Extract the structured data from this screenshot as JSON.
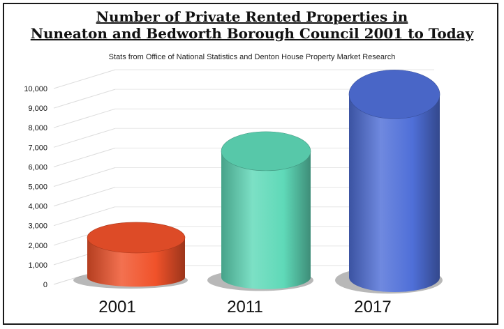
{
  "chart_data": {
    "type": "bar",
    "title_line1": "Number of Private Rented Properties in",
    "title_line2": "Nuneaton and Bedworth Borough Council 2001 to Today",
    "subtitle": "Stats from Office of National Statistics and Denton House Property Market Research",
    "categories": [
      "2001",
      "2011",
      "2017"
    ],
    "values": [
      2700,
      7200,
      10200
    ],
    "ylim": [
      0,
      10000
    ],
    "yticks": [
      "0",
      "1,000",
      "2,000",
      "3,000",
      "4,000",
      "5,000",
      "6,000",
      "7,000",
      "8,000",
      "9,000",
      "10,000"
    ],
    "xlabel": "",
    "ylabel": "",
    "grid": true,
    "colors": [
      "#f0522a",
      "#5fd9b8",
      "#4f6fd8"
    ]
  }
}
